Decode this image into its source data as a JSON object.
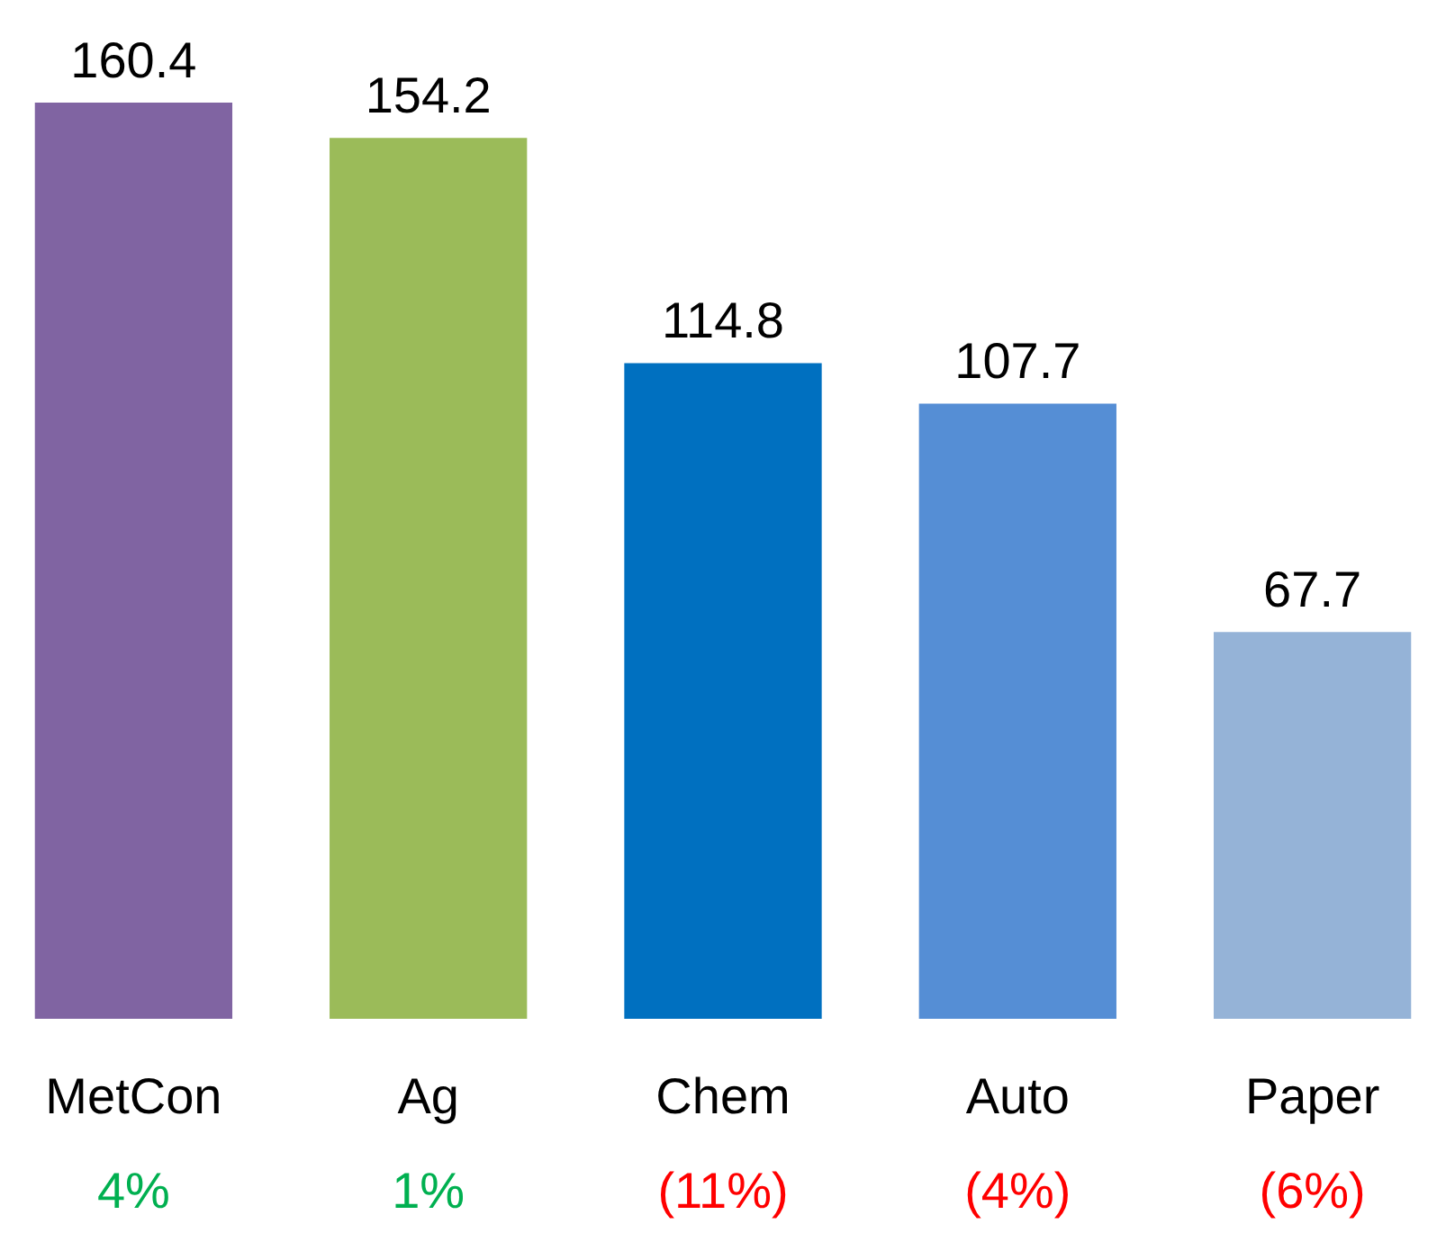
{
  "chart_data": {
    "type": "bar",
    "categories": [
      "MetCon",
      "Ag",
      "Chem",
      "Auto",
      "Paper"
    ],
    "values": [
      160.4,
      154.2,
      114.8,
      107.7,
      67.7
    ],
    "colors": [
      "#8064a2",
      "#9bbb59",
      "#0070c0",
      "#558ed5",
      "#95b3d7"
    ],
    "data_labels": true,
    "annotations": [
      "4%",
      "1%",
      "(11%)",
      "(4%)",
      "(6%)"
    ]
  }
}
